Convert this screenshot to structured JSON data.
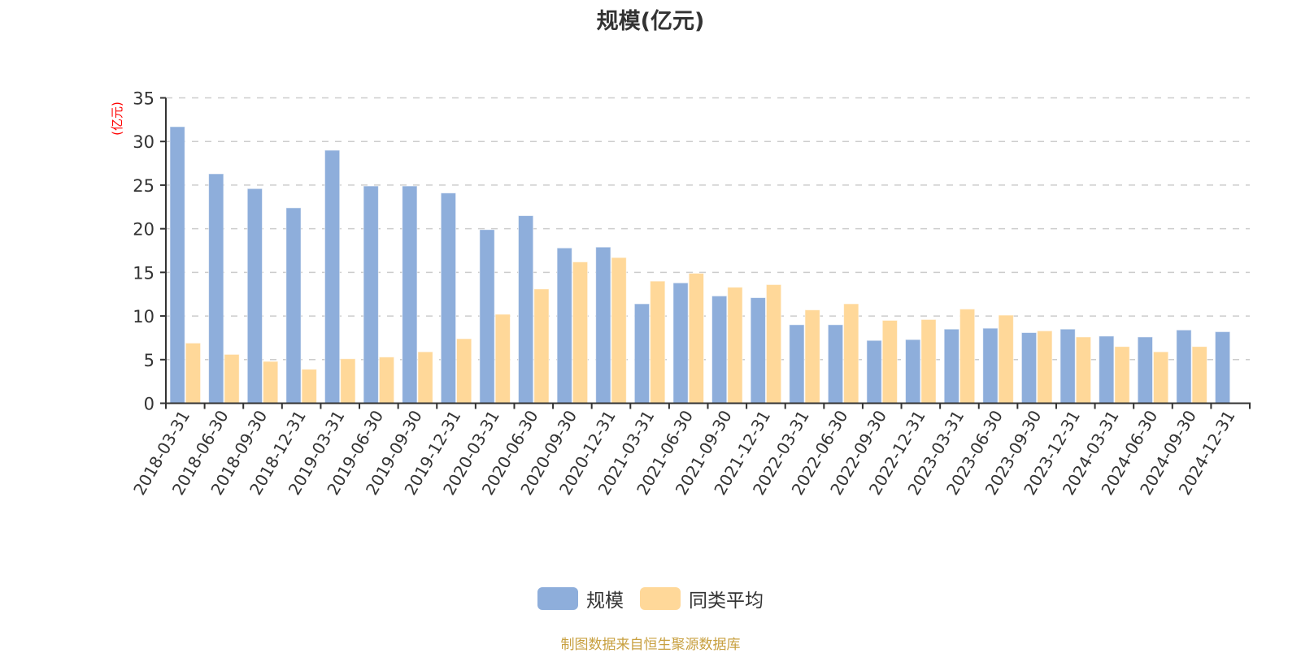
{
  "chart_data": {
    "type": "bar",
    "title": "规模(亿元)",
    "xlabel": "",
    "ylabel": "(亿元)",
    "ylim": [
      0,
      35
    ],
    "yticks": [
      0,
      5,
      10,
      15,
      20,
      25,
      30,
      35
    ],
    "grid": true,
    "legend_position": "bottom",
    "categories": [
      "2018-03-31",
      "2018-06-30",
      "2018-09-30",
      "2018-12-31",
      "2019-03-31",
      "2019-06-30",
      "2019-09-30",
      "2019-12-31",
      "2020-03-31",
      "2020-06-30",
      "2020-09-30",
      "2020-12-31",
      "2021-03-31",
      "2021-06-30",
      "2021-09-30",
      "2021-12-31",
      "2022-03-31",
      "2022-06-30",
      "2022-09-30",
      "2022-12-31",
      "2023-03-31",
      "2023-06-30",
      "2023-09-30",
      "2023-12-31",
      "2024-03-31",
      "2024-06-30",
      "2024-09-30",
      "2024-12-31"
    ],
    "series": [
      {
        "name": "规模",
        "color": "#8eaedb",
        "values": [
          31.7,
          26.3,
          24.6,
          22.4,
          29.0,
          24.9,
          24.9,
          24.1,
          19.9,
          21.5,
          17.8,
          17.9,
          11.4,
          13.8,
          12.3,
          12.1,
          9.0,
          9.0,
          7.2,
          7.3,
          8.5,
          8.6,
          8.1,
          8.5,
          7.7,
          7.6,
          8.4,
          8.2
        ]
      },
      {
        "name": "同类平均",
        "color": "#ffd899",
        "values": [
          6.9,
          5.6,
          4.8,
          3.9,
          5.1,
          5.3,
          5.9,
          7.4,
          10.2,
          13.1,
          16.2,
          16.7,
          14.0,
          14.9,
          13.3,
          13.6,
          10.7,
          11.4,
          9.5,
          9.6,
          10.8,
          10.1,
          8.3,
          7.6,
          6.5,
          5.9,
          6.5,
          null
        ]
      }
    ],
    "source_note": "制图数据来自恒生聚源数据库"
  },
  "header": {
    "title": "规模(亿元)"
  },
  "axis": {
    "unit_label": "(亿元)"
  },
  "legend": {
    "items": [
      {
        "label": "规模",
        "color": "#8eaedb"
      },
      {
        "label": "同类平均",
        "color": "#ffd899"
      }
    ]
  },
  "footer": {
    "source": "制图数据来自恒生聚源数据库"
  }
}
